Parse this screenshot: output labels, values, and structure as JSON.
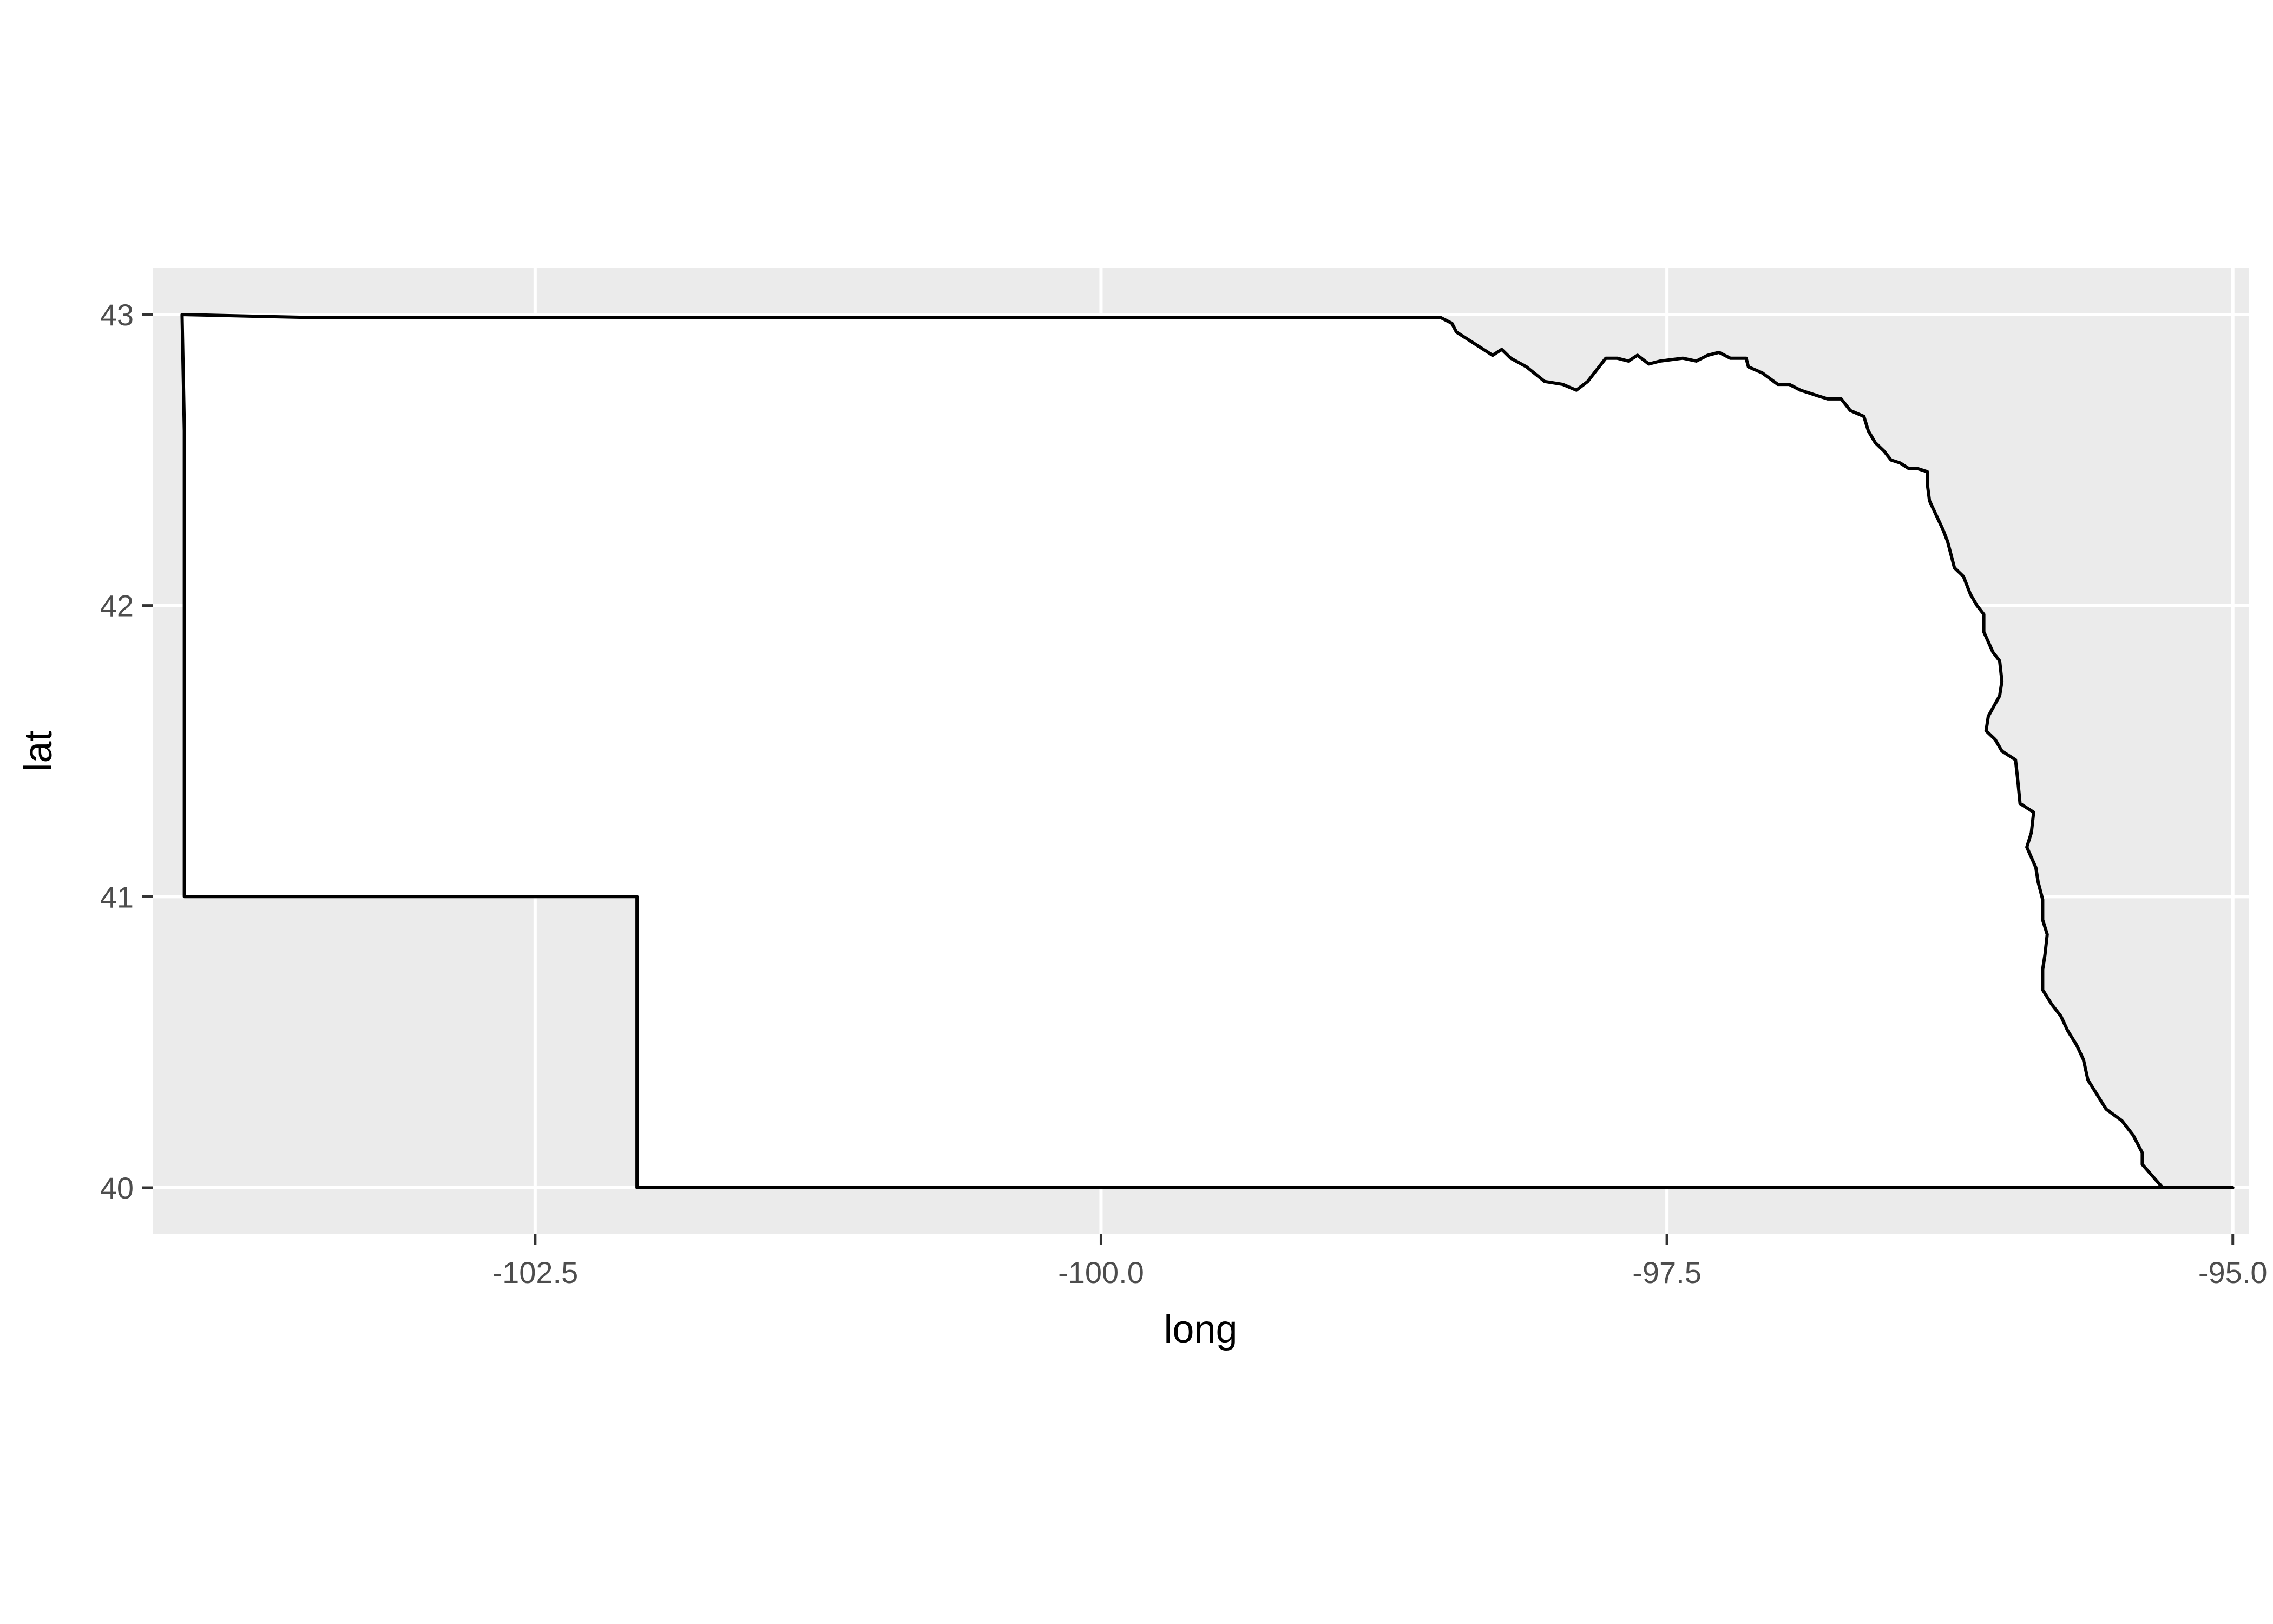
{
  "chart_data": {
    "type": "map",
    "xlabel": "long",
    "ylabel": "lat",
    "xlim": [
      -104.19,
      -94.93
    ],
    "ylim": [
      39.84,
      43.16
    ],
    "x_ticks": [
      -102.5,
      -100.0,
      -97.5,
      -95.0
    ],
    "x_tick_labels": [
      "-102.5",
      "-100.0",
      "-97.5",
      "-95.0"
    ],
    "y_ticks": [
      40,
      41,
      42,
      43
    ],
    "y_tick_labels": [
      "40",
      "41",
      "42",
      "43"
    ],
    "grid": true,
    "panel_background": "#ebebeb",
    "fill_color": "#ffffff",
    "outline_color": "#000000",
    "outline": [
      [
        -104.06,
        43.0
      ],
      [
        -103.5,
        42.99
      ],
      [
        -102.0,
        42.99
      ],
      [
        -101.0,
        42.99
      ],
      [
        -100.0,
        42.99
      ],
      [
        -99.0,
        42.99
      ],
      [
        -98.5,
        42.99
      ],
      [
        -98.45,
        42.97
      ],
      [
        -98.43,
        42.94
      ],
      [
        -98.35,
        42.9
      ],
      [
        -98.27,
        42.86
      ],
      [
        -98.23,
        42.88
      ],
      [
        -98.19,
        42.85
      ],
      [
        -98.12,
        42.82
      ],
      [
        -98.04,
        42.77
      ],
      [
        -97.96,
        42.76
      ],
      [
        -97.9,
        42.74
      ],
      [
        -97.85,
        42.77
      ],
      [
        -97.8,
        42.82
      ],
      [
        -97.77,
        42.85
      ],
      [
        -97.72,
        42.85
      ],
      [
        -97.67,
        42.84
      ],
      [
        -97.63,
        42.86
      ],
      [
        -97.58,
        42.83
      ],
      [
        -97.53,
        42.84
      ],
      [
        -97.43,
        42.85
      ],
      [
        -97.37,
        42.84
      ],
      [
        -97.32,
        42.86
      ],
      [
        -97.27,
        42.87
      ],
      [
        -97.22,
        42.85
      ],
      [
        -97.15,
        42.85
      ],
      [
        -97.14,
        42.82
      ],
      [
        -97.08,
        42.8
      ],
      [
        -97.01,
        42.76
      ],
      [
        -96.96,
        42.76
      ],
      [
        -96.91,
        42.74
      ],
      [
        -96.87,
        42.73
      ],
      [
        -96.83,
        42.72
      ],
      [
        -96.79,
        42.71
      ],
      [
        -96.73,
        42.71
      ],
      [
        -96.69,
        42.67
      ],
      [
        -96.63,
        42.65
      ],
      [
        -96.61,
        42.6
      ],
      [
        -96.58,
        42.56
      ],
      [
        -96.54,
        42.53
      ],
      [
        -96.51,
        42.5
      ],
      [
        -96.47,
        42.49
      ],
      [
        -96.43,
        42.47
      ],
      [
        -96.39,
        42.47
      ],
      [
        -96.35,
        42.46
      ],
      [
        -96.35,
        42.42
      ],
      [
        -96.34,
        42.36
      ],
      [
        -96.31,
        42.31
      ],
      [
        -96.28,
        42.26
      ],
      [
        -96.26,
        42.22
      ],
      [
        -96.25,
        42.19
      ],
      [
        -96.23,
        42.13
      ],
      [
        -96.19,
        42.1
      ],
      [
        -96.16,
        42.04
      ],
      [
        -96.13,
        42.0
      ],
      [
        -96.1,
        41.97
      ],
      [
        -96.1,
        41.91
      ],
      [
        -96.06,
        41.84
      ],
      [
        -96.03,
        41.81
      ],
      [
        -96.02,
        41.74
      ],
      [
        -96.03,
        41.69
      ],
      [
        -96.08,
        41.62
      ],
      [
        -96.09,
        41.57
      ],
      [
        -96.05,
        41.54
      ],
      [
        -96.02,
        41.5
      ],
      [
        -95.96,
        41.47
      ],
      [
        -95.95,
        41.4
      ],
      [
        -95.94,
        41.32
      ],
      [
        -95.88,
        41.29
      ],
      [
        -95.89,
        41.22
      ],
      [
        -95.91,
        41.17
      ],
      [
        -95.87,
        41.1
      ],
      [
        -95.86,
        41.05
      ],
      [
        -95.84,
        40.99
      ],
      [
        -95.84,
        40.92
      ],
      [
        -95.82,
        40.87
      ],
      [
        -95.83,
        40.8
      ],
      [
        -95.84,
        40.75
      ],
      [
        -95.84,
        40.68
      ],
      [
        -95.8,
        40.63
      ],
      [
        -95.76,
        40.59
      ],
      [
        -95.73,
        40.54
      ],
      [
        -95.69,
        40.49
      ],
      [
        -95.66,
        40.44
      ],
      [
        -95.64,
        40.37
      ],
      [
        -95.6,
        40.32
      ],
      [
        -95.56,
        40.27
      ],
      [
        -95.49,
        40.23
      ],
      [
        -95.44,
        40.18
      ],
      [
        -95.4,
        40.12
      ],
      [
        -95.4,
        40.08
      ],
      [
        -95.31,
        40.0
      ],
      [
        -95.0,
        40.0
      ],
      [
        -96.0,
        40.0
      ],
      [
        -97.0,
        40.0
      ],
      [
        -98.0,
        40.0
      ],
      [
        -99.0,
        40.0
      ],
      [
        -100.0,
        40.0
      ],
      [
        -101.0,
        40.0
      ],
      [
        -102.05,
        40.0
      ],
      [
        -102.05,
        40.7
      ],
      [
        -102.05,
        41.0
      ],
      [
        -103.0,
        41.0
      ],
      [
        -104.05,
        41.0
      ],
      [
        -104.05,
        41.7
      ],
      [
        -104.05,
        42.0
      ],
      [
        -104.05,
        42.6
      ],
      [
        -104.06,
        43.0
      ]
    ]
  }
}
